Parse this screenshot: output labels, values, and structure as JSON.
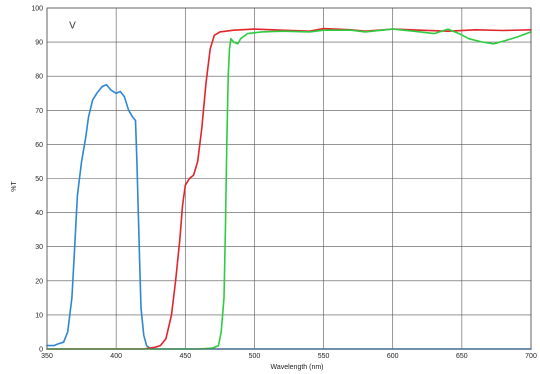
{
  "chart_data": {
    "type": "line",
    "title": "",
    "annotation": "V",
    "xlabel": "Wavelength (nm)",
    "ylabel": "%T",
    "xlim": [
      350,
      700
    ],
    "ylim": [
      0,
      100
    ],
    "xticks": [
      350,
      400,
      450,
      500,
      550,
      600,
      650,
      700
    ],
    "yticks": [
      0,
      10,
      20,
      30,
      40,
      50,
      60,
      70,
      80,
      90,
      100
    ],
    "grid": true,
    "series": [
      {
        "color": "#2f86d6",
        "points": [
          [
            350,
            1
          ],
          [
            355,
            1
          ],
          [
            358,
            1.5
          ],
          [
            362,
            2
          ],
          [
            365,
            5
          ],
          [
            368,
            15
          ],
          [
            370,
            30
          ],
          [
            372,
            45
          ],
          [
            375,
            55
          ],
          [
            378,
            62
          ],
          [
            380,
            68
          ],
          [
            383,
            73
          ],
          [
            386,
            75
          ],
          [
            390,
            77
          ],
          [
            393,
            77.5
          ],
          [
            396,
            76
          ],
          [
            400,
            75
          ],
          [
            403,
            75.5
          ],
          [
            406,
            74
          ],
          [
            409,
            70
          ],
          [
            412,
            68
          ],
          [
            414,
            67
          ],
          [
            415,
            55
          ],
          [
            416,
            40
          ],
          [
            417,
            25
          ],
          [
            418,
            12
          ],
          [
            420,
            4
          ],
          [
            422,
            1
          ],
          [
            425,
            0
          ],
          [
            440,
            0
          ],
          [
            500,
            0
          ],
          [
            600,
            0
          ],
          [
            700,
            0
          ]
        ]
      },
      {
        "color": "#e0262b",
        "points": [
          [
            350,
            0
          ],
          [
            420,
            0
          ],
          [
            428,
            0.5
          ],
          [
            432,
            1
          ],
          [
            436,
            3
          ],
          [
            440,
            10
          ],
          [
            443,
            20
          ],
          [
            446,
            32
          ],
          [
            448,
            42
          ],
          [
            450,
            48
          ],
          [
            453,
            50
          ],
          [
            456,
            51
          ],
          [
            459,
            55
          ],
          [
            462,
            65
          ],
          [
            465,
            78
          ],
          [
            468,
            88
          ],
          [
            471,
            92
          ],
          [
            475,
            93
          ],
          [
            485,
            93.5
          ],
          [
            500,
            93.8
          ],
          [
            520,
            93.5
          ],
          [
            540,
            93.2
          ],
          [
            550,
            94
          ],
          [
            570,
            93.6
          ],
          [
            580,
            93.2
          ],
          [
            600,
            93.8
          ],
          [
            620,
            93.5
          ],
          [
            640,
            93.2
          ],
          [
            660,
            93.6
          ],
          [
            680,
            93.4
          ],
          [
            700,
            93.6
          ]
        ]
      },
      {
        "color": "#2ecc40",
        "points": [
          [
            350,
            0
          ],
          [
            460,
            0
          ],
          [
            470,
            0.3
          ],
          [
            474,
            1
          ],
          [
            476,
            5
          ],
          [
            478,
            15
          ],
          [
            479,
            35
          ],
          [
            480,
            60
          ],
          [
            481,
            80
          ],
          [
            482,
            88
          ],
          [
            483,
            91
          ],
          [
            485,
            90
          ],
          [
            488,
            89.5
          ],
          [
            490,
            91
          ],
          [
            495,
            92.5
          ],
          [
            505,
            93
          ],
          [
            520,
            93.2
          ],
          [
            540,
            93
          ],
          [
            550,
            93.5
          ],
          [
            570,
            93.5
          ],
          [
            580,
            93
          ],
          [
            600,
            93.8
          ],
          [
            615,
            93.2
          ],
          [
            630,
            92.5
          ],
          [
            640,
            93.8
          ],
          [
            648,
            92.5
          ],
          [
            655,
            91
          ],
          [
            665,
            90
          ],
          [
            673,
            89.5
          ],
          [
            682,
            90.5
          ],
          [
            690,
            91.5
          ],
          [
            700,
            93
          ]
        ]
      }
    ]
  }
}
